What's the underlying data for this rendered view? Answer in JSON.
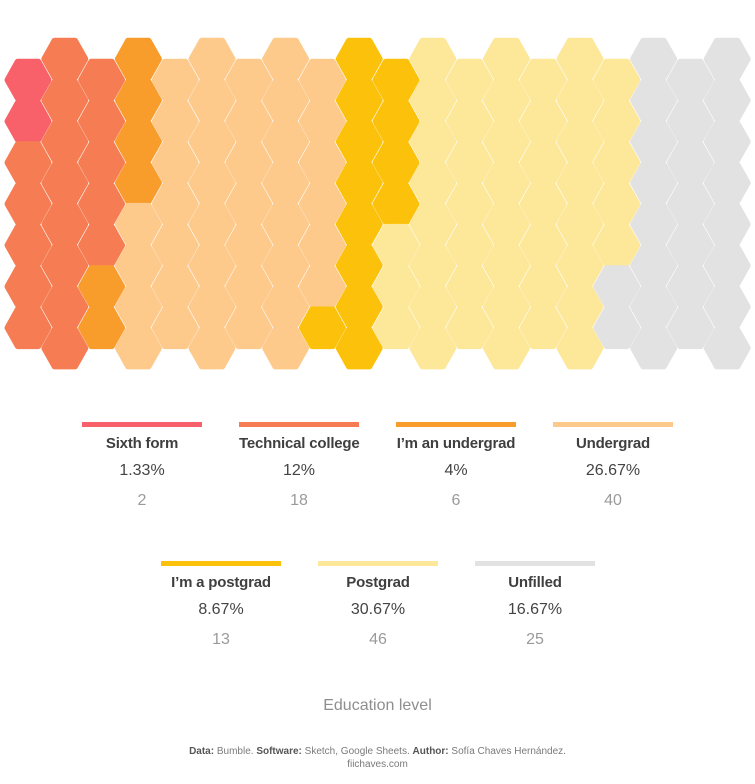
{
  "chart_data": {
    "type": "waffle-honeycomb",
    "title": "Education level",
    "total": 150,
    "categories": [
      {
        "label": "Sixth form",
        "percent": "1.33%",
        "count": 2,
        "color": "#f8606a"
      },
      {
        "label": "Technical college",
        "percent": "12%",
        "count": 18,
        "color": "#f67d53"
      },
      {
        "label": "I’m an undergrad",
        "percent": "4%",
        "count": 6,
        "color": "#f89c2c"
      },
      {
        "label": "Undergrad",
        "percent": "26.67%",
        "count": 40,
        "color": "#fdca8c"
      },
      {
        "label": "I’m a postgrad",
        "percent": "8.67%",
        "count": 13,
        "color": "#fcc10a"
      },
      {
        "label": "Postgrad",
        "percent": "30.67%",
        "count": 46,
        "color": "#fde799"
      },
      {
        "label": "Unfilled",
        "percent": "16.67%",
        "count": 25,
        "color": "#e2e2e2"
      }
    ]
  },
  "legend": {
    "items": [
      {
        "label": "Sixth form",
        "percent": "1.33%",
        "count": "2"
      },
      {
        "label": "Technical college",
        "percent": "12%",
        "count": "18"
      },
      {
        "label": "I’m an undergrad",
        "percent": "4%",
        "count": "6"
      },
      {
        "label": "Undergrad",
        "percent": "26.67%",
        "count": "40"
      },
      {
        "label": "I’m a postgrad",
        "percent": "8.67%",
        "count": "13"
      },
      {
        "label": "Postgrad",
        "percent": "30.67%",
        "count": "46"
      },
      {
        "label": "Unfilled",
        "percent": "16.67%",
        "count": "25"
      }
    ]
  },
  "axis": {
    "title": "Education level"
  },
  "credits": {
    "data_label": "Data:",
    "data_value": "Bumble.",
    "software_label": "Software:",
    "software_value": "Sketch, Google Sheets.",
    "author_label": "Author:",
    "author_value": "Sofía Chaves Hernández.",
    "site": "fiichaves.com"
  }
}
